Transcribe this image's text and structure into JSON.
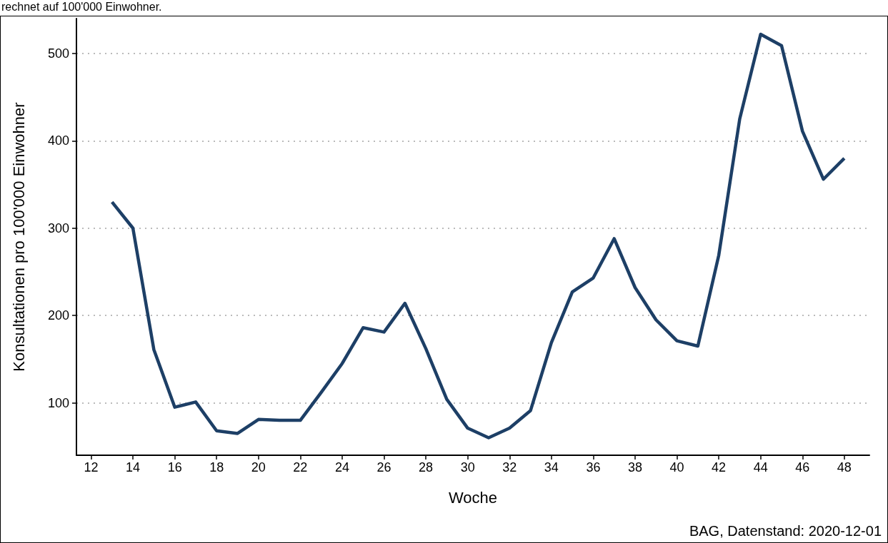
{
  "chart_data": {
    "type": "line",
    "subtitle": "rechnet auf 100'000 Einwohner.",
    "xlabel": "Woche",
    "ylabel": "Konsultationen pro 100'000 Einwohner",
    "annotations": [
      "BAG, Datenstand: 2020-12-01"
    ],
    "x": [
      13,
      14,
      15,
      16,
      17,
      18,
      19,
      20,
      21,
      22,
      23,
      24,
      25,
      26,
      27,
      28,
      29,
      30,
      31,
      32,
      33,
      34,
      35,
      36,
      37,
      38,
      39,
      40,
      41,
      42,
      43,
      44,
      45,
      46,
      47,
      48
    ],
    "series": [
      {
        "color": "#1d3f66",
        "values": [
          330,
          300,
          161,
          95,
          101,
          68,
          65,
          81,
          80,
          80,
          112,
          145,
          186,
          181,
          214,
          162,
          104,
          71,
          60,
          71,
          91,
          169,
          227,
          243,
          288,
          232,
          195,
          171,
          165,
          269,
          425,
          522,
          509,
          411,
          356,
          380
        ]
      }
    ],
    "xlim": [
      11.3,
      49.2
    ],
    "xticks": [
      12,
      14,
      16,
      18,
      20,
      22,
      24,
      26,
      28,
      30,
      32,
      34,
      36,
      38,
      40,
      42,
      44,
      46,
      48
    ],
    "ylim": [
      40,
      540
    ],
    "yticks": [
      100,
      200,
      300,
      400,
      500
    ],
    "grid": "y",
    "marker": "none",
    "line_style": "solid"
  }
}
